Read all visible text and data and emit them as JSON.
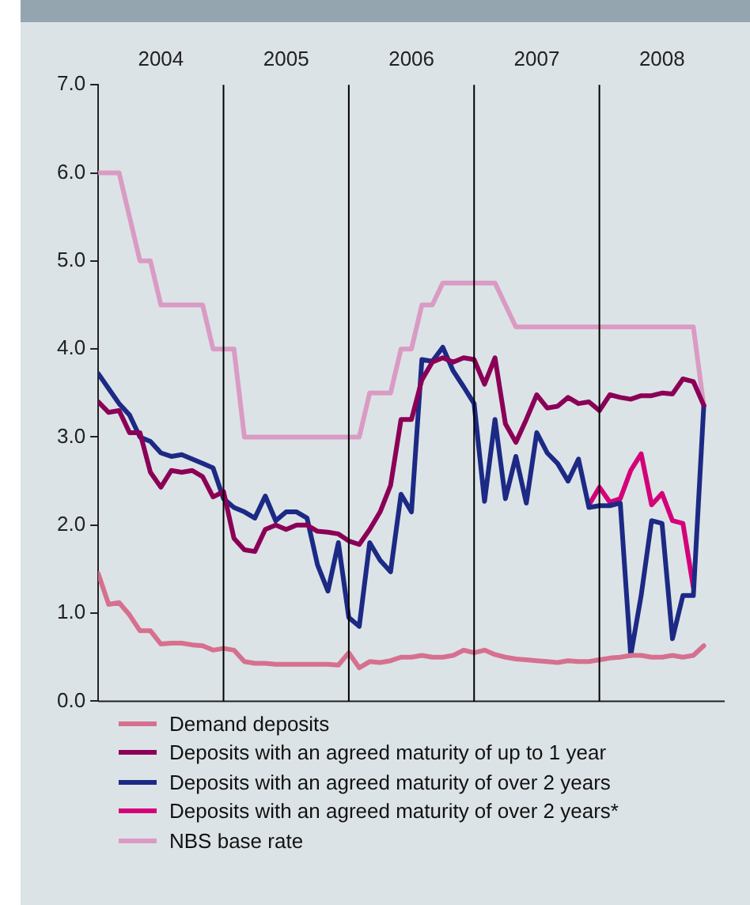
{
  "chart_data": {
    "type": "line",
    "x": [
      "2004-01",
      "2004-02",
      "2004-03",
      "2004-04",
      "2004-05",
      "2004-06",
      "2004-07",
      "2004-08",
      "2004-09",
      "2004-10",
      "2004-11",
      "2004-12",
      "2005-01",
      "2005-02",
      "2005-03",
      "2005-04",
      "2005-05",
      "2005-06",
      "2005-07",
      "2005-08",
      "2005-09",
      "2005-10",
      "2005-11",
      "2005-12",
      "2006-01",
      "2006-02",
      "2006-03",
      "2006-04",
      "2006-05",
      "2006-06",
      "2006-07",
      "2006-08",
      "2006-09",
      "2006-10",
      "2006-11",
      "2006-12",
      "2007-01",
      "2007-02",
      "2007-03",
      "2007-04",
      "2007-05",
      "2007-06",
      "2007-07",
      "2007-08",
      "2007-09",
      "2007-10",
      "2007-11",
      "2007-12",
      "2008-01",
      "2008-02",
      "2008-03",
      "2008-04",
      "2008-05",
      "2008-06",
      "2008-07",
      "2008-08",
      "2008-09",
      "2008-10",
      "2008-11"
    ],
    "series": [
      {
        "name": "Demand deposits",
        "color": "#d6708f",
        "values": [
          1.45,
          1.1,
          1.12,
          0.98,
          0.8,
          0.8,
          0.65,
          0.66,
          0.66,
          0.64,
          0.63,
          0.58,
          0.6,
          0.58,
          0.45,
          0.43,
          0.43,
          0.42,
          0.42,
          0.42,
          0.42,
          0.42,
          0.42,
          0.41,
          0.55,
          0.38,
          0.45,
          0.44,
          0.46,
          0.5,
          0.5,
          0.52,
          0.5,
          0.5,
          0.52,
          0.58,
          0.55,
          0.58,
          0.53,
          0.5,
          0.48,
          0.47,
          0.46,
          0.45,
          0.44,
          0.46,
          0.45,
          0.45,
          0.47,
          0.49,
          0.5,
          0.52,
          0.52,
          0.5,
          0.5,
          0.52,
          0.5,
          0.52,
          0.63
        ]
      },
      {
        "name": "Deposits with an agreed maturity of up to 1 year",
        "color": "#8b0057",
        "values": [
          3.4,
          3.28,
          3.3,
          3.05,
          3.05,
          2.6,
          2.43,
          2.62,
          2.6,
          2.62,
          2.55,
          2.32,
          2.38,
          1.85,
          1.72,
          1.7,
          1.95,
          2.0,
          1.95,
          2.0,
          2.0,
          1.93,
          1.92,
          1.9,
          1.82,
          1.78,
          1.95,
          2.15,
          2.45,
          3.2,
          3.2,
          3.65,
          3.85,
          3.9,
          3.85,
          3.9,
          3.88,
          3.6,
          3.9,
          3.15,
          2.94,
          3.2,
          3.48,
          3.33,
          3.35,
          3.45,
          3.38,
          3.4,
          3.3,
          3.48,
          3.45,
          3.43,
          3.47,
          3.47,
          3.5,
          3.49,
          3.66,
          3.63,
          3.36
        ]
      },
      {
        "name": "Deposits with an agreed maturity of over 2 years",
        "color": "#1c2a85",
        "values": [
          3.72,
          3.55,
          3.38,
          3.25,
          3.0,
          2.95,
          2.82,
          2.78,
          2.8,
          2.75,
          2.7,
          2.65,
          2.3,
          2.2,
          2.15,
          2.08,
          2.33,
          2.05,
          2.15,
          2.15,
          2.08,
          1.55,
          1.25,
          1.8,
          0.95,
          0.85,
          1.8,
          1.6,
          1.47,
          2.35,
          2.15,
          3.88,
          3.86,
          4.02,
          3.75,
          3.57,
          3.38,
          2.27,
          3.2,
          2.3,
          2.78,
          2.25,
          3.05,
          2.82,
          2.7,
          2.5,
          2.75,
          2.2,
          2.22,
          2.22,
          2.25,
          0.52,
          1.2,
          2.05,
          2.02,
          0.71,
          1.2,
          1.2,
          3.36
        ]
      },
      {
        "name": "Deposits with an agreed maturity of over 2 years*",
        "color": "#d4007a",
        "values": [
          null,
          null,
          null,
          null,
          null,
          null,
          null,
          null,
          null,
          null,
          null,
          null,
          null,
          null,
          null,
          null,
          null,
          null,
          null,
          null,
          null,
          null,
          null,
          null,
          null,
          null,
          null,
          null,
          null,
          null,
          null,
          null,
          null,
          null,
          null,
          null,
          null,
          null,
          null,
          null,
          null,
          null,
          null,
          null,
          null,
          null,
          null,
          2.23,
          2.43,
          2.26,
          2.3,
          2.62,
          2.81,
          2.23,
          2.36,
          2.05,
          2.02,
          1.29,
          null
        ]
      },
      {
        "name": "NBS base rate",
        "color": "#d99bc4",
        "values": [
          6.0,
          6.0,
          6.0,
          5.5,
          5.0,
          5.0,
          4.5,
          4.5,
          4.5,
          4.5,
          4.5,
          4.0,
          4.0,
          4.0,
          3.0,
          3.0,
          3.0,
          3.0,
          3.0,
          3.0,
          3.0,
          3.0,
          3.0,
          3.0,
          3.0,
          3.0,
          3.5,
          3.5,
          3.5,
          4.0,
          4.0,
          4.5,
          4.5,
          4.75,
          4.75,
          4.75,
          4.75,
          4.75,
          4.75,
          4.5,
          4.25,
          4.25,
          4.25,
          4.25,
          4.25,
          4.25,
          4.25,
          4.25,
          4.25,
          4.25,
          4.25,
          4.25,
          4.25,
          4.25,
          4.25,
          4.25,
          4.25,
          4.25,
          3.35
        ]
      }
    ],
    "xlim": [
      "2004-01",
      "2009-01"
    ],
    "xticks": [
      {
        "value": "2004-07",
        "label": "2004"
      },
      {
        "value": "2005-07",
        "label": "2005"
      },
      {
        "value": "2006-07",
        "label": "2006"
      },
      {
        "value": "2007-07",
        "label": "2007"
      },
      {
        "value": "2008-07",
        "label": "2008"
      }
    ],
    "ylim": [
      0,
      7
    ],
    "yticks": [
      {
        "value": 0,
        "label": "0.0"
      },
      {
        "value": 1,
        "label": "1.0"
      },
      {
        "value": 2,
        "label": "2.0"
      },
      {
        "value": 3,
        "label": "3.0"
      },
      {
        "value": 4,
        "label": "4.0"
      },
      {
        "value": 5,
        "label": "5.0"
      },
      {
        "value": 6,
        "label": "6.0"
      },
      {
        "value": 7,
        "label": "7.0"
      }
    ],
    "ref_lines": [
      {
        "axis": "x",
        "value": "2005-01",
        "color": "#000000"
      },
      {
        "axis": "x",
        "value": "2006-01",
        "color": "#000000"
      },
      {
        "axis": "x",
        "value": "2007-01",
        "color": "#000000"
      },
      {
        "axis": "x",
        "value": "2008-01",
        "color": "#000000"
      }
    ],
    "grid": false,
    "legend": "bottom",
    "marker": "none",
    "line_style": "solid"
  }
}
